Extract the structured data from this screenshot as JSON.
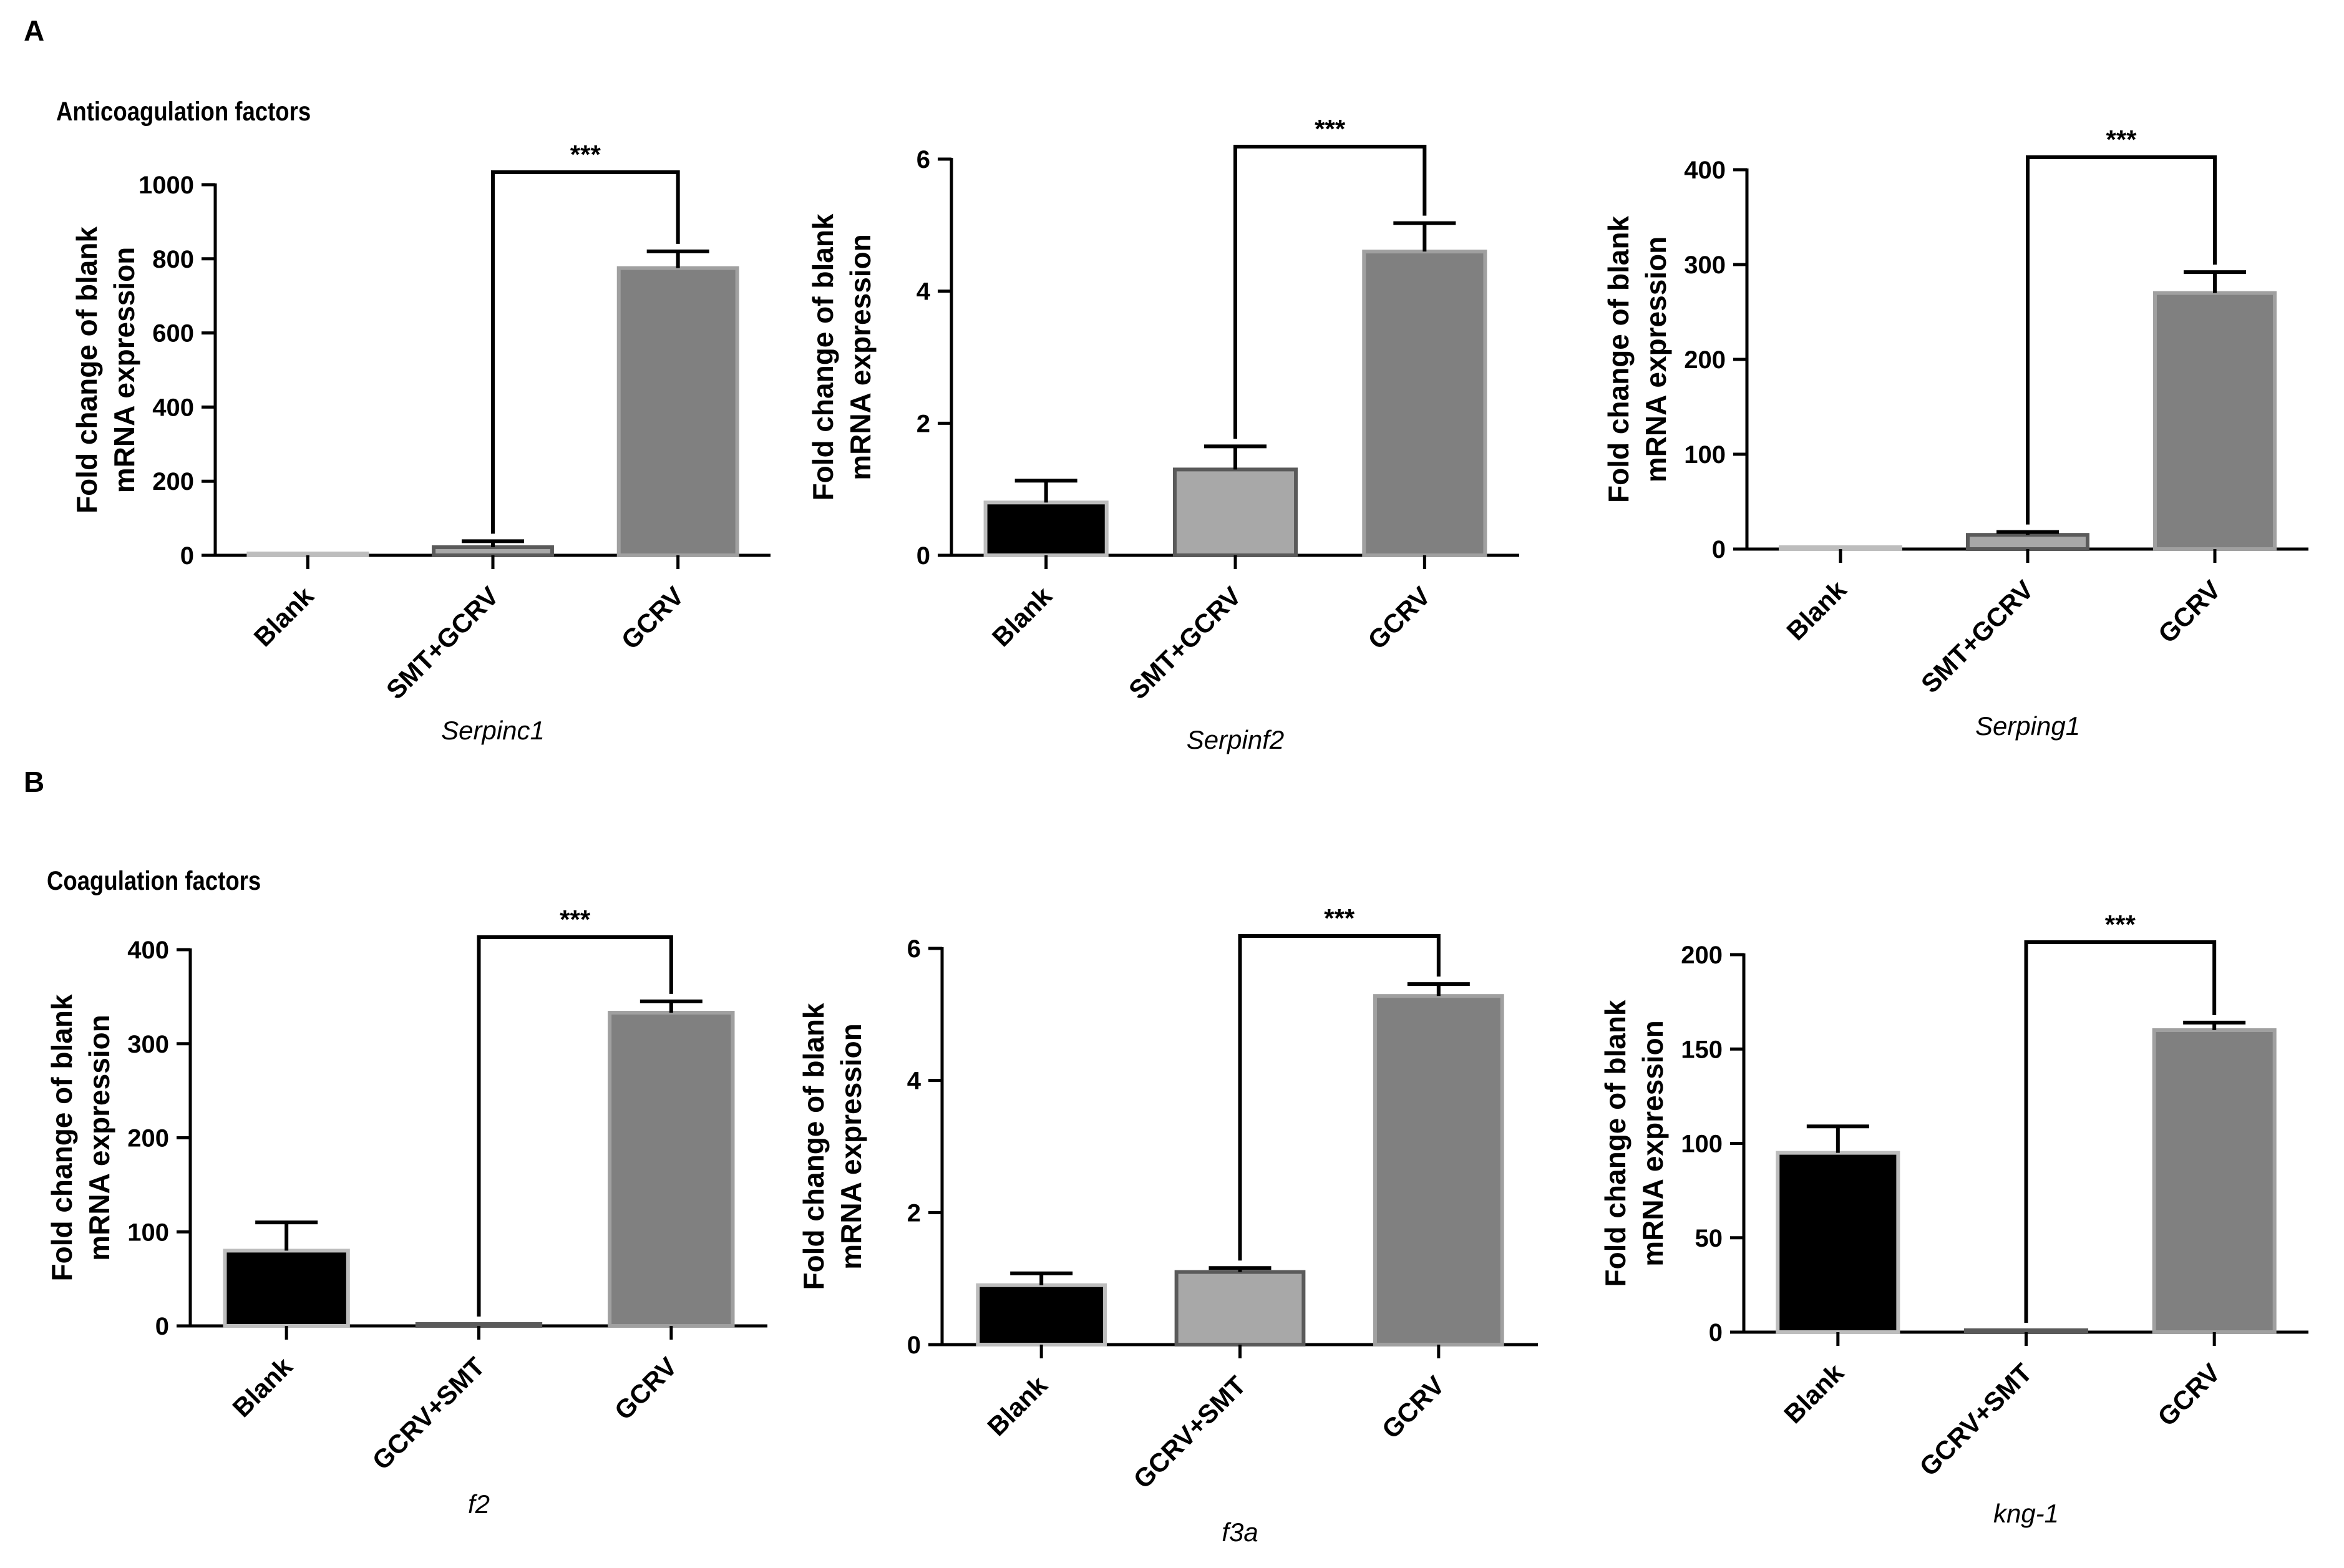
{
  "figure": {
    "panels": [
      {
        "letter": "A",
        "title": "Anticoagulation factors"
      },
      {
        "letter": "B",
        "title": "Coagulation factors"
      }
    ]
  },
  "chart_data": [
    {
      "type": "bar",
      "panel": "A",
      "title": "Serpinc1",
      "ylabel": [
        "Fold change of blank",
        "mRNA expression"
      ],
      "categories": [
        "Blank",
        "SMT+GCRV",
        "GCRV"
      ],
      "values": [
        1,
        22,
        775
      ],
      "errors": [
        0,
        16,
        45
      ],
      "colors": [
        "#000000",
        "#a8a8a8",
        "#808080"
      ],
      "ylim": [
        0,
        1000
      ],
      "yticks": [
        "0",
        "200",
        "400",
        "600",
        "800",
        "1000"
      ],
      "significance": {
        "from": "SMT+GCRV",
        "to": "GCRV",
        "label": "***"
      }
    },
    {
      "type": "bar",
      "panel": "A",
      "title": "Serpinf2",
      "ylabel": [
        "Fold change of blank",
        "mRNA expression"
      ],
      "categories": [
        "Blank",
        "SMT+GCRV",
        "GCRV"
      ],
      "values": [
        0.8,
        1.3,
        4.6
      ],
      "errors": [
        0.33,
        0.35,
        0.43
      ],
      "colors": [
        "#000000",
        "#a8a8a8",
        "#808080"
      ],
      "ylim": [
        0,
        6
      ],
      "yticks": [
        "0",
        "2",
        "4",
        "6"
      ],
      "significance": {
        "from": "SMT+GCRV",
        "to": "GCRV",
        "label": "***"
      }
    },
    {
      "type": "bar",
      "panel": "A",
      "title": "Serping1",
      "ylabel": [
        "Fold change of blank",
        "mRNA expression"
      ],
      "categories": [
        "Blank",
        "SMT+GCRV",
        "GCRV"
      ],
      "values": [
        1,
        15,
        270
      ],
      "errors": [
        0,
        3,
        22
      ],
      "colors": [
        "#000000",
        "#a8a8a8",
        "#808080"
      ],
      "ylim": [
        0,
        400
      ],
      "yticks": [
        "0",
        "100",
        "200",
        "300",
        "400"
      ],
      "significance": {
        "from": "SMT+GCRV",
        "to": "GCRV",
        "label": "***"
      }
    },
    {
      "type": "bar",
      "panel": "B",
      "title": "f2",
      "ylabel": [
        "Fold change of blank",
        "mRNA expression"
      ],
      "categories": [
        "Blank",
        "GCRV+SMT",
        "GCRV"
      ],
      "values": [
        80,
        2,
        333
      ],
      "errors": [
        30,
        0,
        12
      ],
      "colors": [
        "#000000",
        "#a8a8a8",
        "#808080"
      ],
      "ylim": [
        0,
        400
      ],
      "yticks": [
        "0",
        "100",
        "200",
        "300",
        "400"
      ],
      "significance": {
        "from": "GCRV+SMT",
        "to": "GCRV",
        "label": "***"
      }
    },
    {
      "type": "bar",
      "panel": "B",
      "title": "f3a",
      "ylabel": [
        "Fold change of blank",
        "mRNA expression"
      ],
      "categories": [
        "Blank",
        "GCRV+SMT",
        "GCRV"
      ],
      "values": [
        0.9,
        1.1,
        5.28
      ],
      "errors": [
        0.18,
        0.06,
        0.18
      ],
      "colors": [
        "#000000",
        "#a8a8a8",
        "#808080"
      ],
      "ylim": [
        0,
        6
      ],
      "yticks": [
        "0",
        "2",
        "4",
        "6"
      ],
      "significance": {
        "from": "GCRV+SMT",
        "to": "GCRV",
        "label": "***"
      }
    },
    {
      "type": "bar",
      "panel": "B",
      "title": "kng-1",
      "ylabel": [
        "Fold change of blank",
        "mRNA expression"
      ],
      "categories": [
        "Blank",
        "GCRV+SMT",
        "GCRV"
      ],
      "values": [
        95,
        1,
        160
      ],
      "errors": [
        14,
        0,
        4
      ],
      "colors": [
        "#000000",
        "#a8a8a8",
        "#808080"
      ],
      "ylim": [
        0,
        200
      ],
      "yticks": [
        "0",
        "50",
        "100",
        "150",
        "200"
      ],
      "significance": {
        "from": "GCRV+SMT",
        "to": "GCRV",
        "label": "***"
      }
    }
  ]
}
